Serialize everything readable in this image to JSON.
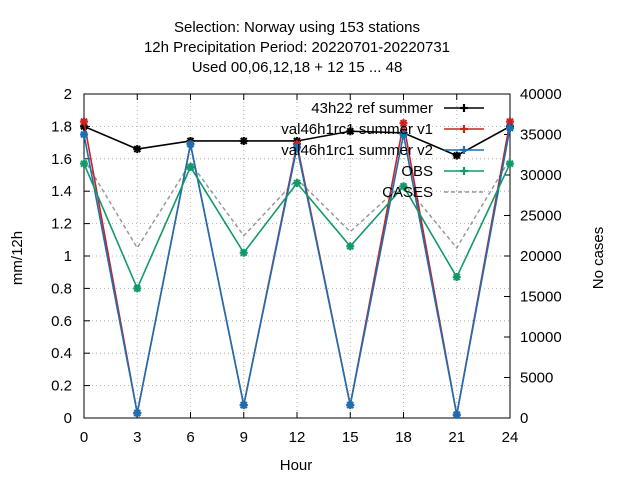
{
  "chart_data": {
    "type": "line",
    "title_lines": [
      "Selection: Norway using   153 stations",
      "12h Precipitation    Period: 20220701-20220731",
      "Used  00,06,12,18  + 12 15 ... 48"
    ],
    "xlabel": "Hour",
    "ylabel": "mm/12h",
    "y2label": "No cases",
    "x": [
      0,
      3,
      6,
      9,
      12,
      15,
      18,
      21,
      24
    ],
    "xlim": [
      0,
      24
    ],
    "ylim": [
      0,
      2
    ],
    "y2lim": [
      0,
      40000
    ],
    "x_ticks": [
      "0",
      "3",
      "6",
      "9",
      "12",
      "15",
      "18",
      "21",
      "24"
    ],
    "y_ticks": [
      "0",
      "0.2",
      "0.4",
      "0.6",
      "0.8",
      "1",
      "1.2",
      "1.4",
      "1.6",
      "1.8",
      "2"
    ],
    "y2_ticks": [
      "0",
      "5000",
      "10000",
      "15000",
      "20000",
      "25000",
      "30000",
      "35000",
      "40000"
    ],
    "grid": true,
    "legend_position": "top-right",
    "series": [
      {
        "name": "43h22_ref_summer",
        "legend": "43h22 ref summer",
        "color": "#000000",
        "axis": "y1",
        "dash": false,
        "values": [
          1.8,
          1.66,
          1.71,
          1.71,
          1.71,
          1.77,
          1.76,
          1.62,
          1.8
        ]
      },
      {
        "name": "val46h1rc1_summer_v1",
        "legend": "val46h1rc1 summer v1",
        "color": "#cc2222",
        "axis": "y1",
        "dash": false,
        "values": [
          1.83,
          0.03,
          1.69,
          0.08,
          1.69,
          0.08,
          1.82,
          0.02,
          1.83
        ]
      },
      {
        "name": "val46h1rc1_summer_v2",
        "legend": "val46h1rc1 summer v2",
        "color": "#1a6fb5",
        "axis": "y1",
        "dash": false,
        "values": [
          1.75,
          0.03,
          1.69,
          0.08,
          1.67,
          0.08,
          1.75,
          0.02,
          1.79
        ]
      },
      {
        "name": "OBS",
        "legend": "OBS",
        "color": "#109a6a",
        "axis": "y1",
        "dash": false,
        "values": [
          1.57,
          0.8,
          1.55,
          1.02,
          1.45,
          1.06,
          1.43,
          0.87,
          1.57
        ]
      },
      {
        "name": "CASES",
        "legend": "CASES",
        "color": "#999999",
        "axis": "y2",
        "dash": true,
        "values": [
          32000,
          21000,
          31500,
          22500,
          29500,
          23000,
          29000,
          21000,
          32000
        ]
      }
    ]
  }
}
